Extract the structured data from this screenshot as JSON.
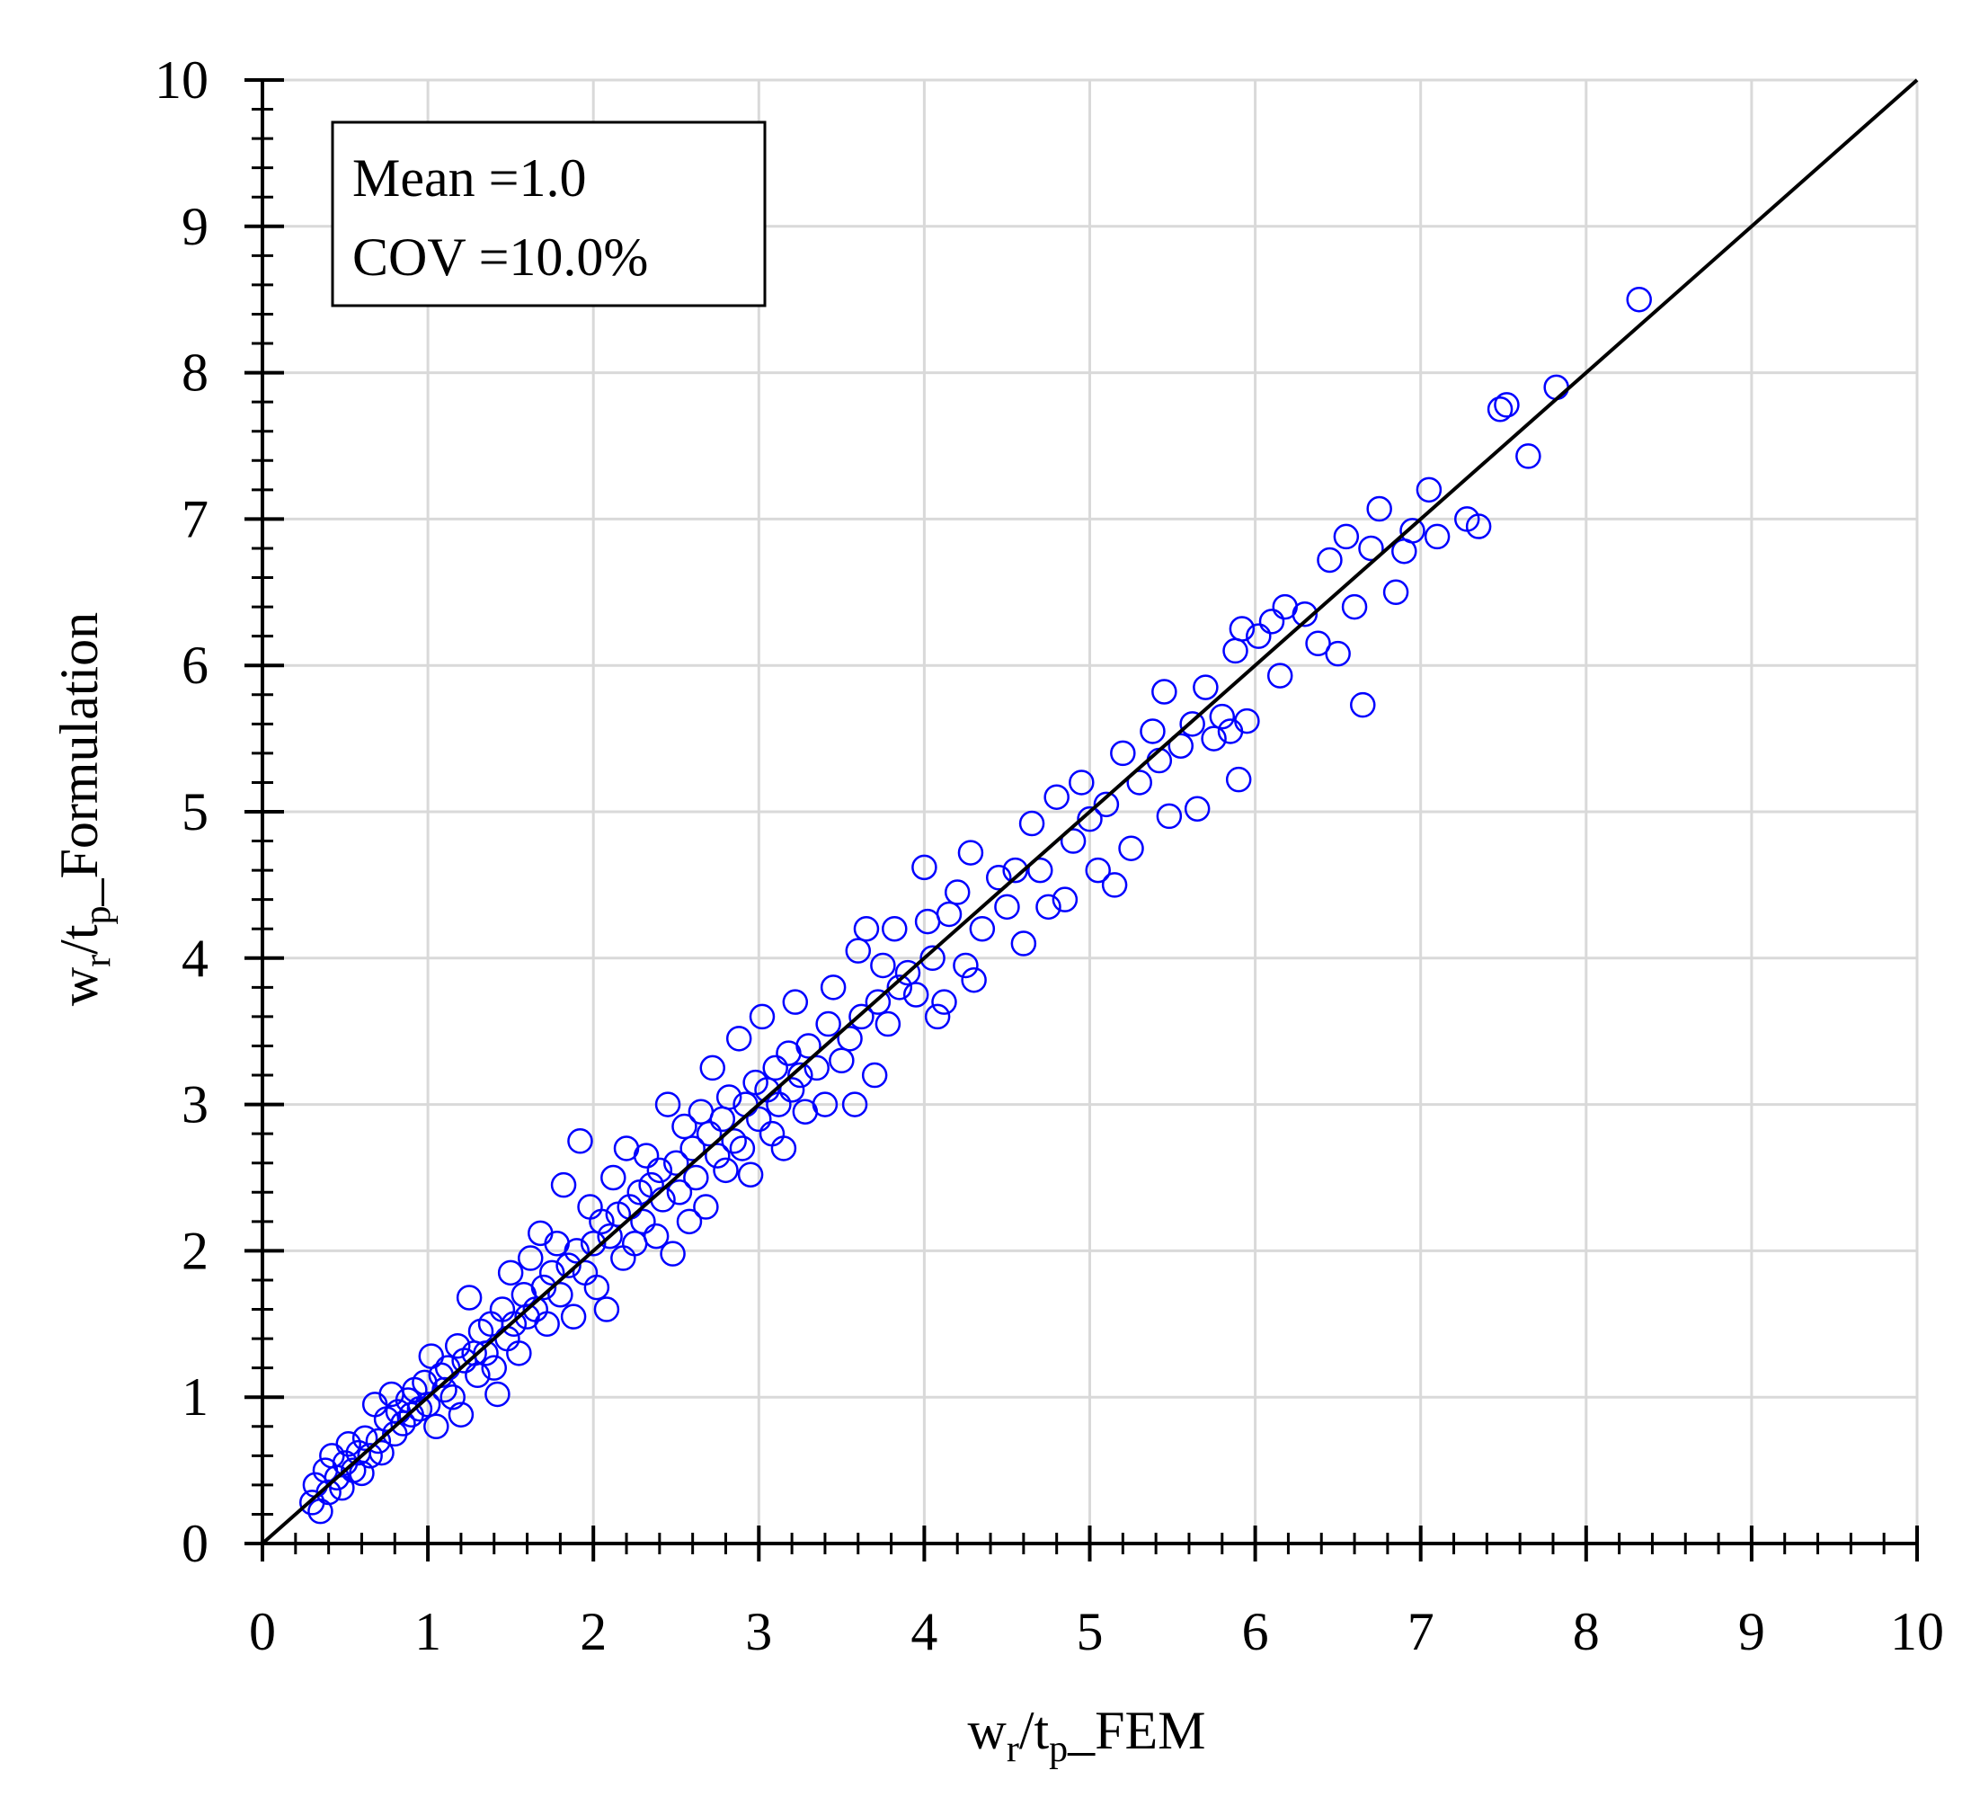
{
  "chart_data": {
    "type": "scatter",
    "xlabel_parts": [
      "w",
      "r",
      "/t",
      "p",
      "_FEM"
    ],
    "ylabel_parts": [
      "w",
      "r",
      "/t",
      "p",
      "_Formulation"
    ],
    "annotations": [
      "Mean =1.0",
      "COV =10.0%"
    ],
    "color": "#0000ff",
    "xlim": [
      0,
      10
    ],
    "ylim": [
      0,
      10
    ],
    "xticks": [
      0,
      1,
      2,
      3,
      4,
      5,
      6,
      7,
      8,
      9,
      10
    ],
    "yticks": [
      0,
      1,
      2,
      3,
      4,
      5,
      6,
      7,
      8,
      9,
      10
    ],
    "minor_ticks_per_major": 5,
    "grid": true,
    "reference_line": {
      "x": [
        0,
        10
      ],
      "y": [
        0,
        10
      ],
      "color": "#000000"
    },
    "x": [
      0.3,
      0.32,
      0.35,
      0.38,
      0.4,
      0.42,
      0.45,
      0.48,
      0.5,
      0.52,
      0.55,
      0.58,
      0.6,
      0.62,
      0.65,
      0.68,
      0.7,
      0.72,
      0.75,
      0.78,
      0.8,
      0.82,
      0.85,
      0.88,
      0.9,
      0.92,
      0.95,
      0.98,
      1.0,
      1.02,
      1.05,
      1.08,
      1.1,
      1.12,
      1.15,
      1.18,
      1.2,
      1.22,
      1.25,
      1.28,
      1.3,
      1.32,
      1.35,
      1.38,
      1.4,
      1.42,
      1.45,
      1.48,
      1.5,
      1.52,
      1.55,
      1.58,
      1.6,
      1.62,
      1.65,
      1.68,
      1.7,
      1.72,
      1.75,
      1.78,
      1.8,
      1.82,
      1.85,
      1.88,
      1.9,
      1.92,
      1.95,
      1.98,
      2.0,
      2.02,
      2.05,
      2.08,
      2.1,
      2.12,
      2.15,
      2.18,
      2.2,
      2.22,
      2.25,
      2.28,
      2.3,
      2.32,
      2.35,
      2.38,
      2.4,
      2.42,
      2.45,
      2.48,
      2.5,
      2.52,
      2.55,
      2.58,
      2.6,
      2.62,
      2.65,
      2.68,
      2.7,
      2.72,
      2.75,
      2.78,
      2.8,
      2.82,
      2.85,
      2.88,
      2.9,
      2.92,
      2.95,
      2.98,
      3.0,
      3.02,
      3.05,
      3.08,
      3.1,
      3.12,
      3.15,
      3.18,
      3.2,
      3.22,
      3.25,
      3.28,
      3.3,
      3.35,
      3.4,
      3.42,
      3.45,
      3.5,
      3.55,
      3.58,
      3.6,
      3.62,
      3.65,
      3.7,
      3.72,
      3.75,
      3.78,
      3.82,
      3.85,
      3.9,
      3.95,
      4.0,
      4.02,
      4.05,
      4.08,
      4.12,
      4.15,
      4.2,
      4.25,
      4.28,
      4.3,
      4.35,
      4.45,
      4.5,
      4.55,
      4.6,
      4.65,
      4.7,
      4.75,
      4.8,
      4.85,
      4.9,
      4.95,
      5.0,
      5.05,
      5.1,
      5.15,
      5.2,
      5.25,
      5.3,
      5.38,
      5.42,
      5.45,
      5.48,
      5.55,
      5.62,
      5.65,
      5.7,
      5.75,
      5.8,
      5.85,
      5.88,
      5.9,
      5.92,
      5.95,
      6.02,
      6.1,
      6.15,
      6.18,
      6.3,
      6.38,
      6.45,
      6.5,
      6.55,
      6.6,
      6.65,
      6.7,
      6.75,
      6.85,
      6.9,
      6.95,
      7.05,
      7.1,
      7.28,
      7.35,
      7.48,
      7.52,
      7.65,
      7.82,
      8.32
    ],
    "values": [
      0.28,
      0.4,
      0.22,
      0.5,
      0.35,
      0.6,
      0.45,
      0.38,
      0.55,
      0.68,
      0.5,
      0.62,
      0.48,
      0.72,
      0.6,
      0.95,
      0.7,
      0.62,
      0.85,
      1.02,
      0.75,
      0.9,
      0.82,
      0.98,
      0.88,
      1.05,
      0.92,
      1.1,
      0.95,
      1.28,
      0.8,
      1.15,
      1.05,
      1.2,
      1.0,
      1.35,
      0.88,
      1.25,
      1.68,
      1.3,
      1.15,
      1.45,
      1.3,
      1.5,
      1.2,
      1.02,
      1.6,
      1.4,
      1.85,
      1.5,
      1.3,
      1.7,
      1.55,
      1.95,
      1.6,
      2.12,
      1.75,
      1.5,
      1.85,
      2.05,
      1.7,
      2.45,
      1.9,
      1.55,
      2.0,
      2.75,
      1.85,
      2.3,
      2.05,
      1.75,
      2.2,
      1.6,
      2.1,
      2.5,
      2.25,
      1.95,
      2.7,
      2.3,
      2.05,
      2.4,
      2.2,
      2.65,
      2.45,
      2.1,
      2.55,
      2.35,
      3.0,
      1.98,
      2.6,
      2.4,
      2.85,
      2.2,
      2.7,
      2.5,
      2.95,
      2.3,
      2.8,
      3.25,
      2.65,
      2.9,
      2.55,
      3.05,
      2.75,
      3.45,
      2.7,
      3.0,
      2.52,
      3.15,
      2.9,
      3.6,
      3.1,
      2.8,
      3.25,
      3.0,
      2.7,
      3.35,
      3.1,
      3.7,
      3.2,
      2.95,
      3.4,
      3.25,
      3.0,
      3.55,
      3.8,
      3.3,
      3.45,
      3.0,
      4.05,
      3.6,
      4.2,
      3.2,
      3.7,
      3.95,
      3.55,
      4.2,
      3.8,
      3.9,
      3.75,
      4.62,
      4.25,
      4.0,
      3.6,
      3.7,
      4.3,
      4.45,
      3.95,
      4.72,
      3.85,
      4.2,
      4.55,
      4.35,
      4.6,
      4.1,
      4.92,
      4.6,
      4.35,
      5.1,
      4.4,
      4.8,
      5.2,
      4.95,
      4.6,
      5.05,
      4.5,
      5.4,
      4.75,
      5.2,
      5.55,
      5.35,
      5.82,
      4.97,
      5.45,
      5.6,
      5.02,
      5.85,
      5.5,
      5.65,
      5.55,
      6.1,
      5.22,
      6.25,
      5.62,
      6.2,
      6.3,
      5.93,
      6.4,
      6.35,
      6.15,
      6.72,
      6.08,
      6.88,
      6.4,
      5.73,
      6.8,
      7.07,
      6.5,
      6.78,
      6.92,
      7.2,
      6.88,
      7.0,
      6.95,
      7.75,
      7.78,
      7.43,
      7.9,
      8.5
    ]
  }
}
